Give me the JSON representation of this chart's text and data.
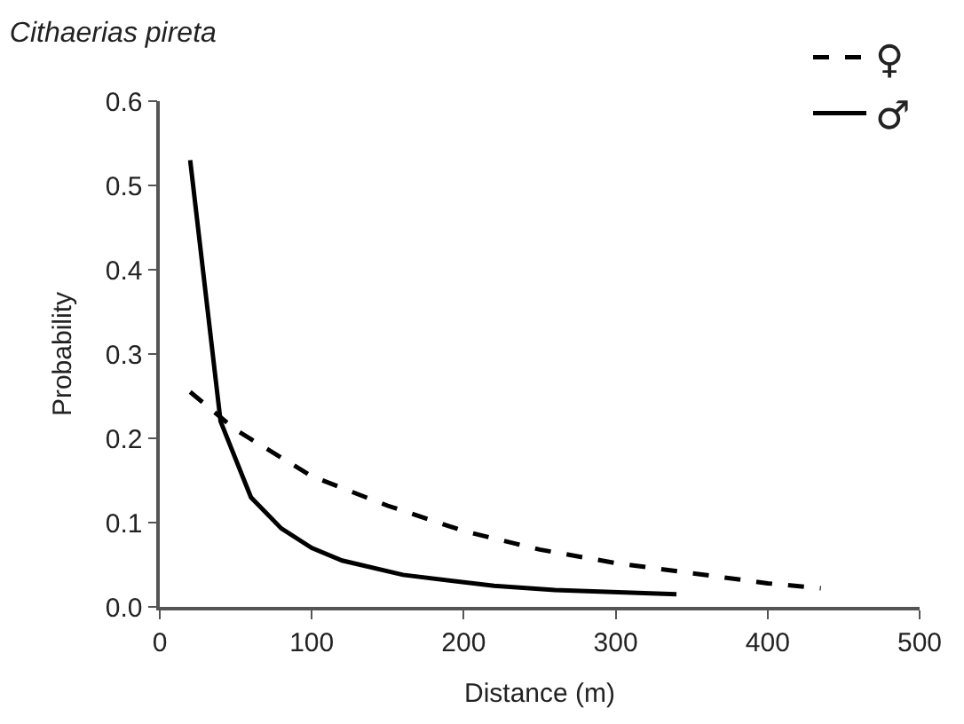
{
  "chart_data": {
    "type": "line",
    "title": "Cithaerias pireta",
    "xlabel": "Distance (m)",
    "ylabel": "Probability",
    "xlim": [
      0,
      500
    ],
    "xticks": [
      0,
      100,
      200,
      300,
      400,
      500
    ],
    "ylim": [
      0,
      0.6
    ],
    "yticks": [
      {
        "value": 0,
        "label": "0.0"
      },
      0.1,
      0.2,
      0.3,
      0.4,
      0.5,
      0.6
    ],
    "legend": "top right",
    "grid": false,
    "marker": "none",
    "series": [
      {
        "name": "♀",
        "color": "#000000",
        "line_style": "dashed",
        "x": [
          20,
          50,
          100,
          150,
          200,
          250,
          300,
          350,
          400,
          435
        ],
        "values": [
          0.255,
          0.21,
          0.155,
          0.12,
          0.09,
          0.068,
          0.052,
          0.04,
          0.028,
          0.022
        ]
      },
      {
        "name": "♂",
        "color": "#000000",
        "line_style": "solid",
        "x": [
          20,
          40,
          60,
          80,
          100,
          120,
          160,
          220,
          260,
          340
        ],
        "values": [
          0.53,
          0.22,
          0.13,
          0.093,
          0.07,
          0.055,
          0.038,
          0.025,
          0.02,
          0.015
        ]
      }
    ]
  }
}
